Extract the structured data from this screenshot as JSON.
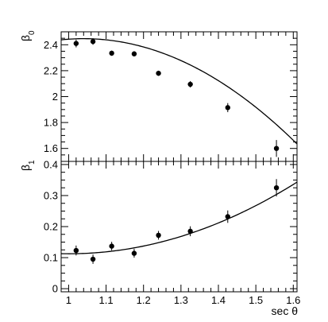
{
  "chart_data": [
    {
      "type": "scatter",
      "panel": "top",
      "ylabel": "β",
      "ylabel_subscript": "0",
      "xlim": [
        0.98,
        1.61
      ],
      "ylim": [
        1.5,
        2.5
      ],
      "yticks": [
        1.6,
        1.8,
        2.0,
        2.2,
        2.4
      ],
      "ytick_labels": [
        "1.6",
        "1.8",
        "2",
        "2.2",
        "2.4"
      ],
      "series": [
        {
          "points": [
            {
              "x": 1.02,
              "y": 2.41,
              "err": 0.03
            },
            {
              "x": 1.065,
              "y": 2.425,
              "err": 0.025
            },
            {
              "x": 1.115,
              "y": 2.335,
              "err": 0.02
            },
            {
              "x": 1.175,
              "y": 2.33,
              "err": 0.02
            },
            {
              "x": 1.24,
              "y": 2.18,
              "err": 0.02
            },
            {
              "x": 1.325,
              "y": 2.095,
              "err": 0.025
            },
            {
              "x": 1.425,
              "y": 1.915,
              "err": 0.035
            },
            {
              "x": 1.555,
              "y": 1.6,
              "err": 0.065
            }
          ]
        }
      ],
      "fit": {
        "type": "quadratic",
        "coefficients": [
          2.443,
          0.2,
          -2.5
        ],
        "x0": 1.0,
        "x_range": [
          0.98,
          1.61
        ]
      }
    },
    {
      "type": "scatter",
      "panel": "bottom",
      "ylabel": "β",
      "ylabel_subscript": "1",
      "xlabel": "sec θ",
      "xlim": [
        0.98,
        1.61
      ],
      "ylim": [
        -0.01,
        0.41
      ],
      "yticks": [
        0,
        0.1,
        0.2,
        0.3,
        0.4
      ],
      "ytick_labels": [
        "0",
        "0.1",
        "0.2",
        "0.3",
        "0.4"
      ],
      "xticks": [
        1.0,
        1.1,
        1.2,
        1.3,
        1.4,
        1.5,
        1.6
      ],
      "xtick_labels": [
        "1",
        "1.1",
        "1.2",
        "1.3",
        "1.4",
        "1.5",
        "1.6"
      ],
      "series": [
        {
          "points": [
            {
              "x": 1.02,
              "y": 0.123,
              "err": 0.016
            },
            {
              "x": 1.065,
              "y": 0.095,
              "err": 0.015
            },
            {
              "x": 1.115,
              "y": 0.137,
              "err": 0.014
            },
            {
              "x": 1.175,
              "y": 0.114,
              "err": 0.014
            },
            {
              "x": 1.24,
              "y": 0.172,
              "err": 0.014
            },
            {
              "x": 1.325,
              "y": 0.185,
              "err": 0.016
            },
            {
              "x": 1.425,
              "y": 0.232,
              "err": 0.02
            },
            {
              "x": 1.555,
              "y": 0.325,
              "err": 0.028
            }
          ]
        }
      ],
      "fit": {
        "type": "quadratic",
        "coefficients": [
          0.1125,
          0.0,
          0.62
        ],
        "x0": 1.0,
        "x_range": [
          0.98,
          1.61
        ]
      }
    }
  ]
}
